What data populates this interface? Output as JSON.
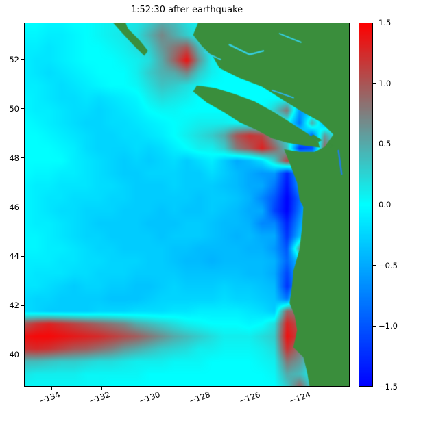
{
  "title": "1:52:30 after earthquake",
  "chart_data": {
    "type": "heatmap",
    "title": "1:52:30 after earthquake",
    "xlabel": "",
    "ylabel": "",
    "x_range": [
      -135.1,
      -122.1
    ],
    "y_range": [
      38.7,
      53.5
    ],
    "x_ticks": [
      -134,
      -132,
      -130,
      -128,
      -126,
      -124
    ],
    "x_tick_labels": [
      "−134",
      "−132",
      "−130",
      "−128",
      "−126",
      "−124"
    ],
    "y_ticks": [
      40,
      42,
      44,
      46,
      48,
      50,
      52
    ],
    "y_tick_labels": [
      "40",
      "42",
      "44",
      "46",
      "48",
      "50",
      "52"
    ],
    "colorbar": {
      "min": -1.5,
      "max": 1.5,
      "ticks": [
        1.5,
        1.0,
        0.5,
        0.0,
        -0.5,
        -1.0,
        -1.5
      ],
      "tick_labels": [
        "1.5",
        "1.0",
        "0.5",
        "0.0",
        "−0.5",
        "−1.0",
        "−1.5"
      ]
    },
    "colormap": {
      "low": "#0000ff",
      "mid": "#00ffff",
      "high": "#ff0000"
    },
    "land_color": "#3a8e3c",
    "grid": {
      "lon_start": -135.1,
      "lon_step": 0.5,
      "ncols": 27,
      "lat_start": 53.5,
      "lat_step": -0.5103448,
      "nrows": 30,
      "values": [
        [
          0.0,
          0.0,
          -0.05,
          -0.05,
          0.0,
          0.0,
          0.05,
          0.1,
          0.1,
          0.15,
          0.3,
          0.5,
          0.4,
          0.2,
          0.1,
          0.0,
          0.0,
          0.0,
          0.0,
          0.0,
          0.0,
          0.0,
          0.0,
          0.0,
          0.0,
          0.0,
          0.0
        ],
        [
          -0.05,
          -0.05,
          -0.1,
          -0.1,
          -0.05,
          0.0,
          0.05,
          0.1,
          0.15,
          0.2,
          0.45,
          0.7,
          0.5,
          0.3,
          0.1,
          0.0,
          0.0,
          0.0,
          0.0,
          0.0,
          0.0,
          0.0,
          0.0,
          0.0,
          0.0,
          0.0,
          0.0
        ],
        [
          -0.1,
          -0.1,
          -0.15,
          -0.1,
          -0.05,
          0.0,
          0.0,
          0.05,
          0.1,
          0.2,
          0.3,
          0.6,
          0.8,
          1.0,
          0.4,
          0.1,
          0.0,
          0.0,
          0.0,
          0.0,
          0.0,
          0.0,
          0.0,
          0.0,
          0.0,
          0.0,
          0.0
        ],
        [
          -0.1,
          -0.15,
          -0.15,
          -0.1,
          -0.05,
          0.0,
          0.0,
          0.0,
          0.05,
          0.1,
          0.2,
          0.5,
          0.9,
          1.4,
          0.6,
          0.1,
          0.0,
          0.0,
          0.0,
          0.0,
          0.0,
          0.0,
          0.0,
          0.0,
          0.0,
          0.0,
          0.0
        ],
        [
          -0.1,
          -0.15,
          -0.2,
          -0.15,
          -0.1,
          -0.05,
          0.0,
          0.0,
          0.0,
          0.1,
          0.3,
          0.45,
          0.5,
          0.7,
          0.3,
          0.1,
          0.0,
          0.0,
          0.0,
          0.0,
          0.0,
          0.0,
          0.0,
          0.0,
          0.0,
          0.0,
          0.0
        ],
        [
          -0.1,
          -0.1,
          -0.15,
          -0.2,
          -0.15,
          -0.1,
          -0.05,
          0.0,
          0.0,
          0.05,
          0.2,
          0.35,
          0.3,
          0.2,
          0.1,
          0.0,
          0.0,
          0.0,
          0.0,
          0.0,
          0.0,
          0.0,
          0.0,
          0.0,
          0.0,
          0.0,
          0.0
        ],
        [
          -0.05,
          -0.1,
          -0.15,
          -0.2,
          -0.2,
          -0.15,
          -0.2,
          -0.15,
          -0.1,
          -0.05,
          0.1,
          0.2,
          0.15,
          0.1,
          0.0,
          0.0,
          0.0,
          0.0,
          0.0,
          0.0,
          0.0,
          0.0,
          0.0,
          0.0,
          0.0,
          0.0,
          0.0
        ],
        [
          -0.05,
          -0.1,
          -0.1,
          -0.15,
          -0.2,
          -0.2,
          -0.25,
          -0.2,
          -0.15,
          -0.1,
          0.0,
          0.05,
          0.05,
          0.0,
          0.0,
          0.0,
          0.0,
          0.0,
          0.0,
          0.0,
          0.3,
          0.8,
          -0.6,
          -0.4,
          0.0,
          0.0,
          0.0
        ],
        [
          0.0,
          -0.05,
          -0.1,
          -0.15,
          -0.2,
          -0.25,
          -0.25,
          -0.2,
          -0.2,
          -0.15,
          -0.1,
          -0.05,
          0.0,
          0.05,
          0.1,
          0.1,
          0.1,
          0.05,
          0.0,
          0.0,
          0.0,
          0.0,
          -0.8,
          0.5,
          -0.5,
          0.0,
          0.0
        ],
        [
          0.0,
          0.0,
          -0.05,
          -0.1,
          -0.15,
          -0.2,
          -0.25,
          -0.25,
          -0.2,
          -0.2,
          -0.15,
          -0.1,
          0.0,
          0.1,
          0.2,
          0.3,
          0.5,
          1.0,
          1.2,
          1.1,
          0.6,
          0.2,
          0.0,
          -0.9,
          0.6,
          0.0,
          0.0
        ],
        [
          0.0,
          0.0,
          0.0,
          -0.05,
          -0.1,
          -0.2,
          -0.25,
          -0.25,
          -0.25,
          -0.2,
          -0.25,
          -0.2,
          -0.1,
          0.0,
          0.1,
          0.1,
          0.3,
          0.8,
          1.0,
          1.3,
          0.9,
          0.4,
          -1.2,
          -1.0,
          0.9,
          0.3,
          0.0
        ],
        [
          0.0,
          0.0,
          0.0,
          0.0,
          -0.1,
          -0.15,
          -0.2,
          -0.25,
          -0.3,
          -0.25,
          -0.3,
          -0.25,
          -0.2,
          -0.3,
          -0.2,
          -0.1,
          -0.3,
          -0.5,
          -0.4,
          -0.2,
          0.3,
          1.1,
          0.5,
          0.0,
          0.0,
          0.0,
          0.0
        ],
        [
          0.0,
          -0.05,
          -0.05,
          -0.1,
          -0.1,
          -0.15,
          -0.2,
          -0.25,
          -0.3,
          -0.3,
          -0.25,
          -0.25,
          -0.25,
          -0.3,
          -0.3,
          -0.2,
          -0.3,
          -0.4,
          -0.5,
          -0.6,
          -0.6,
          -1.3,
          -0.5,
          0.0,
          0.0,
          0.0,
          0.0
        ],
        [
          -0.05,
          -0.1,
          -0.1,
          -0.15,
          -0.15,
          -0.15,
          -0.2,
          -0.2,
          -0.25,
          -0.3,
          -0.3,
          -0.3,
          -0.25,
          -0.3,
          -0.3,
          -0.3,
          -0.35,
          -0.4,
          -0.5,
          -0.5,
          -0.8,
          -1.4,
          -0.6,
          0.0,
          0.0,
          0.0,
          0.0
        ],
        [
          -0.05,
          -0.1,
          -0.15,
          -0.15,
          -0.2,
          -0.2,
          -0.2,
          -0.25,
          -0.25,
          -0.3,
          -0.3,
          -0.3,
          -0.3,
          -0.3,
          -0.35,
          -0.3,
          -0.3,
          -0.35,
          -0.45,
          -0.7,
          -1.0,
          -1.5,
          -0.9,
          0.0,
          0.0,
          0.0,
          0.0
        ],
        [
          -0.05,
          -0.1,
          -0.15,
          -0.2,
          -0.2,
          -0.25,
          -0.25,
          -0.25,
          -0.3,
          -0.3,
          -0.3,
          -0.35,
          -0.3,
          -0.35,
          -0.35,
          -0.3,
          -0.35,
          -0.4,
          -0.5,
          -0.5,
          -1.1,
          -1.5,
          -0.8,
          0.0,
          0.0,
          0.0,
          0.0
        ],
        [
          -0.05,
          -0.1,
          -0.1,
          -0.15,
          -0.2,
          -0.25,
          -0.3,
          -0.3,
          -0.3,
          -0.3,
          -0.35,
          -0.35,
          -0.35,
          -0.3,
          -0.3,
          -0.35,
          -0.4,
          -0.4,
          -0.45,
          -0.7,
          -0.7,
          -1.3,
          -0.6,
          0.0,
          0.0,
          0.0,
          0.0
        ],
        [
          -0.05,
          -0.05,
          -0.1,
          -0.15,
          -0.2,
          -0.25,
          -0.25,
          -0.3,
          -0.3,
          -0.3,
          -0.3,
          -0.35,
          -0.3,
          -0.3,
          -0.3,
          -0.35,
          -0.4,
          -0.45,
          -0.4,
          -0.5,
          -0.5,
          -1.2,
          -0.4,
          0.0,
          0.0,
          0.0,
          0.0
        ],
        [
          -0.05,
          -0.05,
          -0.1,
          -0.1,
          -0.15,
          -0.2,
          -0.25,
          -0.25,
          -0.3,
          -0.3,
          -0.3,
          -0.3,
          -0.35,
          -0.35,
          -0.4,
          -0.4,
          -0.4,
          -0.4,
          -0.45,
          -0.45,
          -0.6,
          -1.0,
          0.6,
          0.0,
          0.0,
          0.0,
          0.0
        ],
        [
          -0.1,
          -0.1,
          -0.1,
          -0.15,
          -0.15,
          -0.2,
          -0.2,
          -0.25,
          -0.25,
          -0.25,
          -0.3,
          -0.3,
          -0.35,
          -0.4,
          -0.4,
          -0.45,
          -0.4,
          -0.4,
          -0.4,
          -0.4,
          -0.45,
          -0.9,
          -0.3,
          0.0,
          0.0,
          0.0,
          0.0
        ],
        [
          -0.1,
          -0.15,
          -0.15,
          -0.15,
          -0.2,
          -0.2,
          -0.25,
          -0.25,
          -0.25,
          -0.3,
          -0.3,
          -0.3,
          -0.3,
          -0.35,
          -0.35,
          -0.35,
          -0.35,
          -0.35,
          -0.4,
          -0.4,
          -0.5,
          -1.1,
          -0.4,
          0.0,
          0.0,
          0.0,
          0.0
        ],
        [
          -0.15,
          -0.15,
          -0.2,
          -0.25,
          -0.3,
          -0.25,
          -0.25,
          -0.3,
          -0.3,
          -0.35,
          -0.35,
          -0.3,
          -0.25,
          -0.3,
          -0.3,
          -0.3,
          -0.25,
          -0.3,
          -0.3,
          -0.35,
          -0.4,
          -1.2,
          -0.5,
          0.0,
          0.0,
          0.0,
          0.0
        ],
        [
          -0.2,
          -0.25,
          -0.25,
          -0.3,
          -0.3,
          -0.3,
          -0.3,
          -0.35,
          -0.35,
          -0.35,
          -0.3,
          -0.25,
          -0.25,
          -0.25,
          -0.25,
          -0.25,
          -0.2,
          -0.25,
          -0.25,
          -0.3,
          -0.35,
          -0.8,
          0.4,
          0.0,
          0.0,
          0.0,
          0.0
        ],
        [
          -0.2,
          -0.25,
          -0.3,
          -0.3,
          -0.3,
          -0.3,
          -0.25,
          -0.25,
          -0.25,
          -0.2,
          -0.2,
          -0.2,
          -0.15,
          -0.15,
          -0.1,
          -0.1,
          -0.1,
          -0.1,
          -0.15,
          -0.2,
          -0.3,
          0.9,
          0.8,
          0.0,
          0.0,
          0.0,
          0.0
        ],
        [
          1.0,
          1.2,
          1.3,
          1.2,
          1.1,
          1.0,
          0.9,
          0.8,
          0.7,
          0.5,
          0.4,
          0.3,
          0.2,
          0.1,
          0.05,
          0.0,
          0.0,
          0.0,
          -0.05,
          0.0,
          0.2,
          1.3,
          1.0,
          0.0,
          0.0,
          0.0,
          0.0
        ],
        [
          1.4,
          1.45,
          1.45,
          1.4,
          1.35,
          1.3,
          1.25,
          1.15,
          1.05,
          0.95,
          0.8,
          0.65,
          0.5,
          0.4,
          0.3,
          0.2,
          0.1,
          0.1,
          0.1,
          0.2,
          0.3,
          1.4,
          1.1,
          0.5,
          0.0,
          0.0,
          0.0
        ],
        [
          1.2,
          1.25,
          1.2,
          1.1,
          1.0,
          0.95,
          0.85,
          0.75,
          0.6,
          0.5,
          0.4,
          0.3,
          0.25,
          0.2,
          0.1,
          0.1,
          0.05,
          0.05,
          0.05,
          0.1,
          0.2,
          1.2,
          0.8,
          0.3,
          0.0,
          0.0,
          0.0
        ],
        [
          0.4,
          0.4,
          0.35,
          0.3,
          0.3,
          0.25,
          0.2,
          0.2,
          0.15,
          0.1,
          0.1,
          0.1,
          0.05,
          0.05,
          0.05,
          0.0,
          0.0,
          0.0,
          0.0,
          0.05,
          0.1,
          0.8,
          0.6,
          0.2,
          0.0,
          0.0,
          0.0
        ],
        [
          0.15,
          0.1,
          0.1,
          0.1,
          0.1,
          0.05,
          0.05,
          0.05,
          0.05,
          0.05,
          0.0,
          0.0,
          0.0,
          0.0,
          0.0,
          0.0,
          0.0,
          0.0,
          0.0,
          0.0,
          0.05,
          0.5,
          0.4,
          0.1,
          0.0,
          0.0,
          0.0
        ],
        [
          0.05,
          0.05,
          0.05,
          0.05,
          0.05,
          0.05,
          0.05,
          0.0,
          0.0,
          0.0,
          0.0,
          0.0,
          0.0,
          0.0,
          0.0,
          0.0,
          0.0,
          0.0,
          0.0,
          0.0,
          0.0,
          0.3,
          0.9,
          0.2,
          0.0,
          0.0,
          0.0
        ]
      ]
    },
    "land_polygons": [
      [
        [
          -123.7,
          38.7
        ],
        [
          -123.8,
          39.3
        ],
        [
          -123.95,
          39.9
        ],
        [
          -124.35,
          40.3
        ],
        [
          -124.2,
          41.0
        ],
        [
          -124.3,
          41.6
        ],
        [
          -124.5,
          42.1
        ],
        [
          -124.4,
          42.8
        ],
        [
          -124.35,
          43.4
        ],
        [
          -124.1,
          44.3
        ],
        [
          -124.0,
          45.2
        ],
        [
          -123.95,
          46.0
        ],
        [
          -124.1,
          46.3
        ],
        [
          -124.2,
          47.0
        ],
        [
          -124.5,
          47.8
        ],
        [
          -124.72,
          48.35
        ],
        [
          -124.1,
          48.25
        ],
        [
          -123.5,
          48.25
        ],
        [
          -123.1,
          48.45
        ],
        [
          -122.75,
          48.95
        ],
        [
          -123.25,
          49.45
        ],
        [
          -123.95,
          49.85
        ],
        [
          -124.75,
          50.35
        ],
        [
          -125.6,
          50.9
        ],
        [
          -126.5,
          51.25
        ],
        [
          -127.3,
          51.65
        ],
        [
          -127.55,
          52.1
        ],
        [
          -128.0,
          52.55
        ],
        [
          -128.35,
          53.0
        ],
        [
          -128.15,
          53.5
        ],
        [
          -122.1,
          53.5
        ],
        [
          -122.1,
          38.7
        ]
      ],
      [
        [
          -123.3,
          48.42
        ],
        [
          -123.9,
          48.5
        ],
        [
          -124.6,
          48.62
        ],
        [
          -125.2,
          48.8
        ],
        [
          -125.85,
          49.15
        ],
        [
          -126.5,
          49.45
        ],
        [
          -127.1,
          49.85
        ],
        [
          -127.8,
          50.25
        ],
        [
          -128.35,
          50.7
        ],
        [
          -128.2,
          50.95
        ],
        [
          -127.5,
          50.85
        ],
        [
          -126.7,
          50.6
        ],
        [
          -125.9,
          50.3
        ],
        [
          -125.1,
          49.85
        ],
        [
          -124.4,
          49.4
        ],
        [
          -123.8,
          49.0
        ],
        [
          -123.35,
          48.65
        ]
      ],
      [
        [
          -131.55,
          53.5
        ],
        [
          -131.2,
          53.1
        ],
        [
          -130.75,
          52.6
        ],
        [
          -130.3,
          52.15
        ],
        [
          -130.15,
          52.35
        ],
        [
          -130.5,
          52.8
        ],
        [
          -130.95,
          53.25
        ],
        [
          -131.05,
          53.5
        ]
      ],
      [
        [
          -123.55,
          48.95
        ],
        [
          -123.2,
          48.72
        ],
        [
          -123.35,
          48.65
        ],
        [
          -123.65,
          48.88
        ]
      ],
      [
        [
          -122.95,
          48.62
        ],
        [
          -122.72,
          48.48
        ],
        [
          -122.9,
          48.42
        ]
      ]
    ],
    "inlets": [
      {
        "points": [
          [
            -126.9,
            52.6
          ],
          [
            -126.1,
            52.2
          ],
          [
            -125.55,
            52.35
          ]
        ],
        "width": 2.5,
        "color": "#35cfe0"
      },
      {
        "points": [
          [
            -127.9,
            52.3
          ],
          [
            -127.25,
            52.0
          ]
        ],
        "width": 2,
        "color": "#35cfe0"
      },
      {
        "points": [
          [
            -125.2,
            50.75
          ],
          [
            -124.35,
            50.45
          ]
        ],
        "width": 2,
        "color": "#2bb7ef"
      },
      {
        "points": [
          [
            -124.9,
            53.05
          ],
          [
            -124.05,
            52.7
          ]
        ],
        "width": 2,
        "color": "#35cfe0"
      },
      {
        "points": [
          [
            -122.55,
            48.3
          ],
          [
            -122.42,
            47.35
          ]
        ],
        "width": 2.5,
        "color": "#1f7fe0"
      }
    ]
  }
}
